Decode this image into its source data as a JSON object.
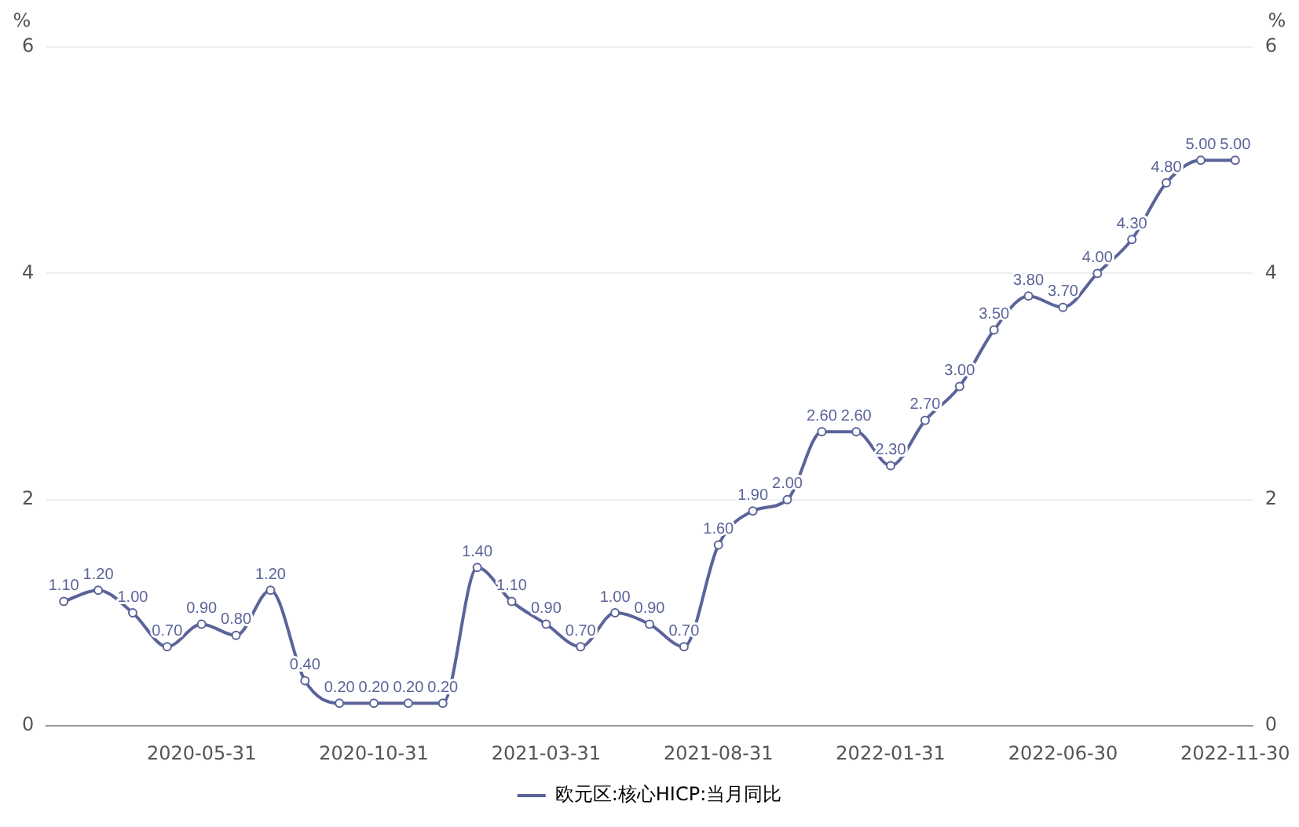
{
  "chart_data": {
    "type": "line",
    "ylabel": "%",
    "y2label": "%",
    "categories": [
      null,
      null,
      null,
      null,
      "2020-05-31",
      null,
      null,
      null,
      null,
      "2020-10-31",
      null,
      null,
      null,
      null,
      "2021-03-31",
      null,
      null,
      null,
      null,
      "2021-08-31",
      null,
      null,
      null,
      null,
      "2022-01-31",
      null,
      null,
      null,
      null,
      "2022-06-30",
      null,
      null,
      null,
      null,
      "2022-11-30"
    ],
    "series": [
      {
        "name": "欧元区:核心HICP:当月同比",
        "color": "#5b6499",
        "values": [
          1.1,
          1.2,
          1.0,
          0.7,
          0.9,
          0.8,
          1.2,
          0.4,
          0.2,
          0.2,
          0.2,
          0.2,
          1.4,
          1.1,
          0.9,
          0.7,
          1.0,
          0.9,
          0.7,
          1.6,
          1.9,
          2.0,
          2.6,
          2.6,
          2.3,
          2.7,
          3.0,
          3.5,
          3.8,
          3.7,
          4.0,
          4.3,
          4.8,
          5.0,
          5.0
        ],
        "value_labels": [
          "1.10",
          "1.20",
          "1.00",
          "0.70",
          "0.90",
          "0.80",
          "1.20",
          "0.40",
          "0.20",
          "0.20",
          "0.20",
          "0.20",
          "1.40",
          "1.10",
          "0.90",
          "0.70",
          "1.00",
          "0.90",
          "0.70",
          "1.60",
          "1.90",
          "2.00",
          "2.60",
          "2.60",
          "2.30",
          "2.70",
          "3.00",
          "3.50",
          "3.80",
          "3.70",
          "4.00",
          "4.30",
          "4.80",
          "5.00",
          "5.00"
        ]
      }
    ],
    "ylim": [
      0,
      6
    ],
    "yticks": [
      0,
      2,
      4,
      6
    ],
    "y2lim": [
      0,
      6
    ],
    "y2ticks": [
      0,
      2,
      4,
      6
    ],
    "grid": "y",
    "legend": "bottom",
    "marker": "circle",
    "line_style": "solid"
  }
}
